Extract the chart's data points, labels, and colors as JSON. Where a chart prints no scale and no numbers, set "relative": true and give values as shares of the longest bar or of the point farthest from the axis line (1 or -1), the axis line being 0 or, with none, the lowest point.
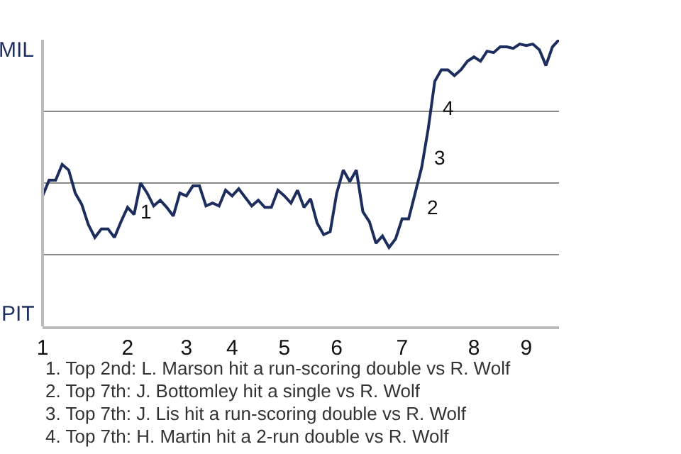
{
  "chart_data": {
    "type": "line",
    "categories": [
      "1",
      null,
      null,
      null,
      null,
      null,
      null,
      null,
      null,
      null,
      null,
      null,
      null,
      "2",
      null,
      null,
      null,
      null,
      null,
      null,
      null,
      null,
      "3",
      null,
      null,
      null,
      null,
      null,
      null,
      "4",
      null,
      null,
      null,
      null,
      null,
      null,
      null,
      "5",
      null,
      null,
      null,
      null,
      null,
      null,
      null,
      "6",
      null,
      null,
      null,
      null,
      null,
      null,
      null,
      null,
      null,
      "7",
      null,
      null,
      null,
      null,
      null,
      null,
      null,
      null,
      null,
      null,
      "8",
      null,
      null,
      null,
      null,
      null,
      null,
      null,
      "9",
      null,
      null,
      null,
      null,
      null
    ],
    "relative": true,
    "series": [
      {
        "color": "#1c2d5e",
        "values": [
          0.455,
          0.51,
          0.51,
          0.565,
          0.545,
          0.465,
          0.425,
          0.355,
          0.31,
          0.34,
          0.34,
          0.31,
          0.365,
          0.415,
          0.39,
          0.5,
          0.465,
          0.42,
          0.44,
          0.415,
          0.385,
          0.465,
          0.455,
          0.49,
          0.49,
          0.42,
          0.43,
          0.42,
          0.475,
          0.455,
          0.48,
          0.45,
          0.42,
          0.44,
          0.415,
          0.415,
          0.475,
          0.455,
          0.43,
          0.475,
          0.415,
          0.445,
          0.36,
          0.32,
          0.33,
          0.465,
          0.545,
          0.505,
          0.545,
          0.4,
          0.365,
          0.29,
          0.315,
          0.275,
          0.305,
          0.375,
          0.375,
          0.465,
          0.555,
          0.69,
          0.855,
          0.895,
          0.895,
          0.875,
          0.895,
          0.925,
          0.94,
          0.925,
          0.96,
          0.955,
          0.975,
          0.975,
          0.97,
          0.985,
          0.98,
          0.985,
          0.965,
          0.91,
          0.975,
          1
        ]
      }
    ],
    "grid": "y",
    "marker": "none",
    "line_style": "solid",
    "annotations": [
      "MIL",
      "PIT",
      "1",
      "2",
      "3",
      "4",
      "1. Top 2nd: L. Marson hit a run-scoring double vs R. Wolf",
      "2. Top 7th: J. Bottomley hit a single vs R. Wolf",
      "3. Top 7th: J. Lis hit a run-scoring double vs R. Wolf",
      "4. Top 7th: H. Martin hit a 2-run double vs R. Wolf"
    ]
  }
}
